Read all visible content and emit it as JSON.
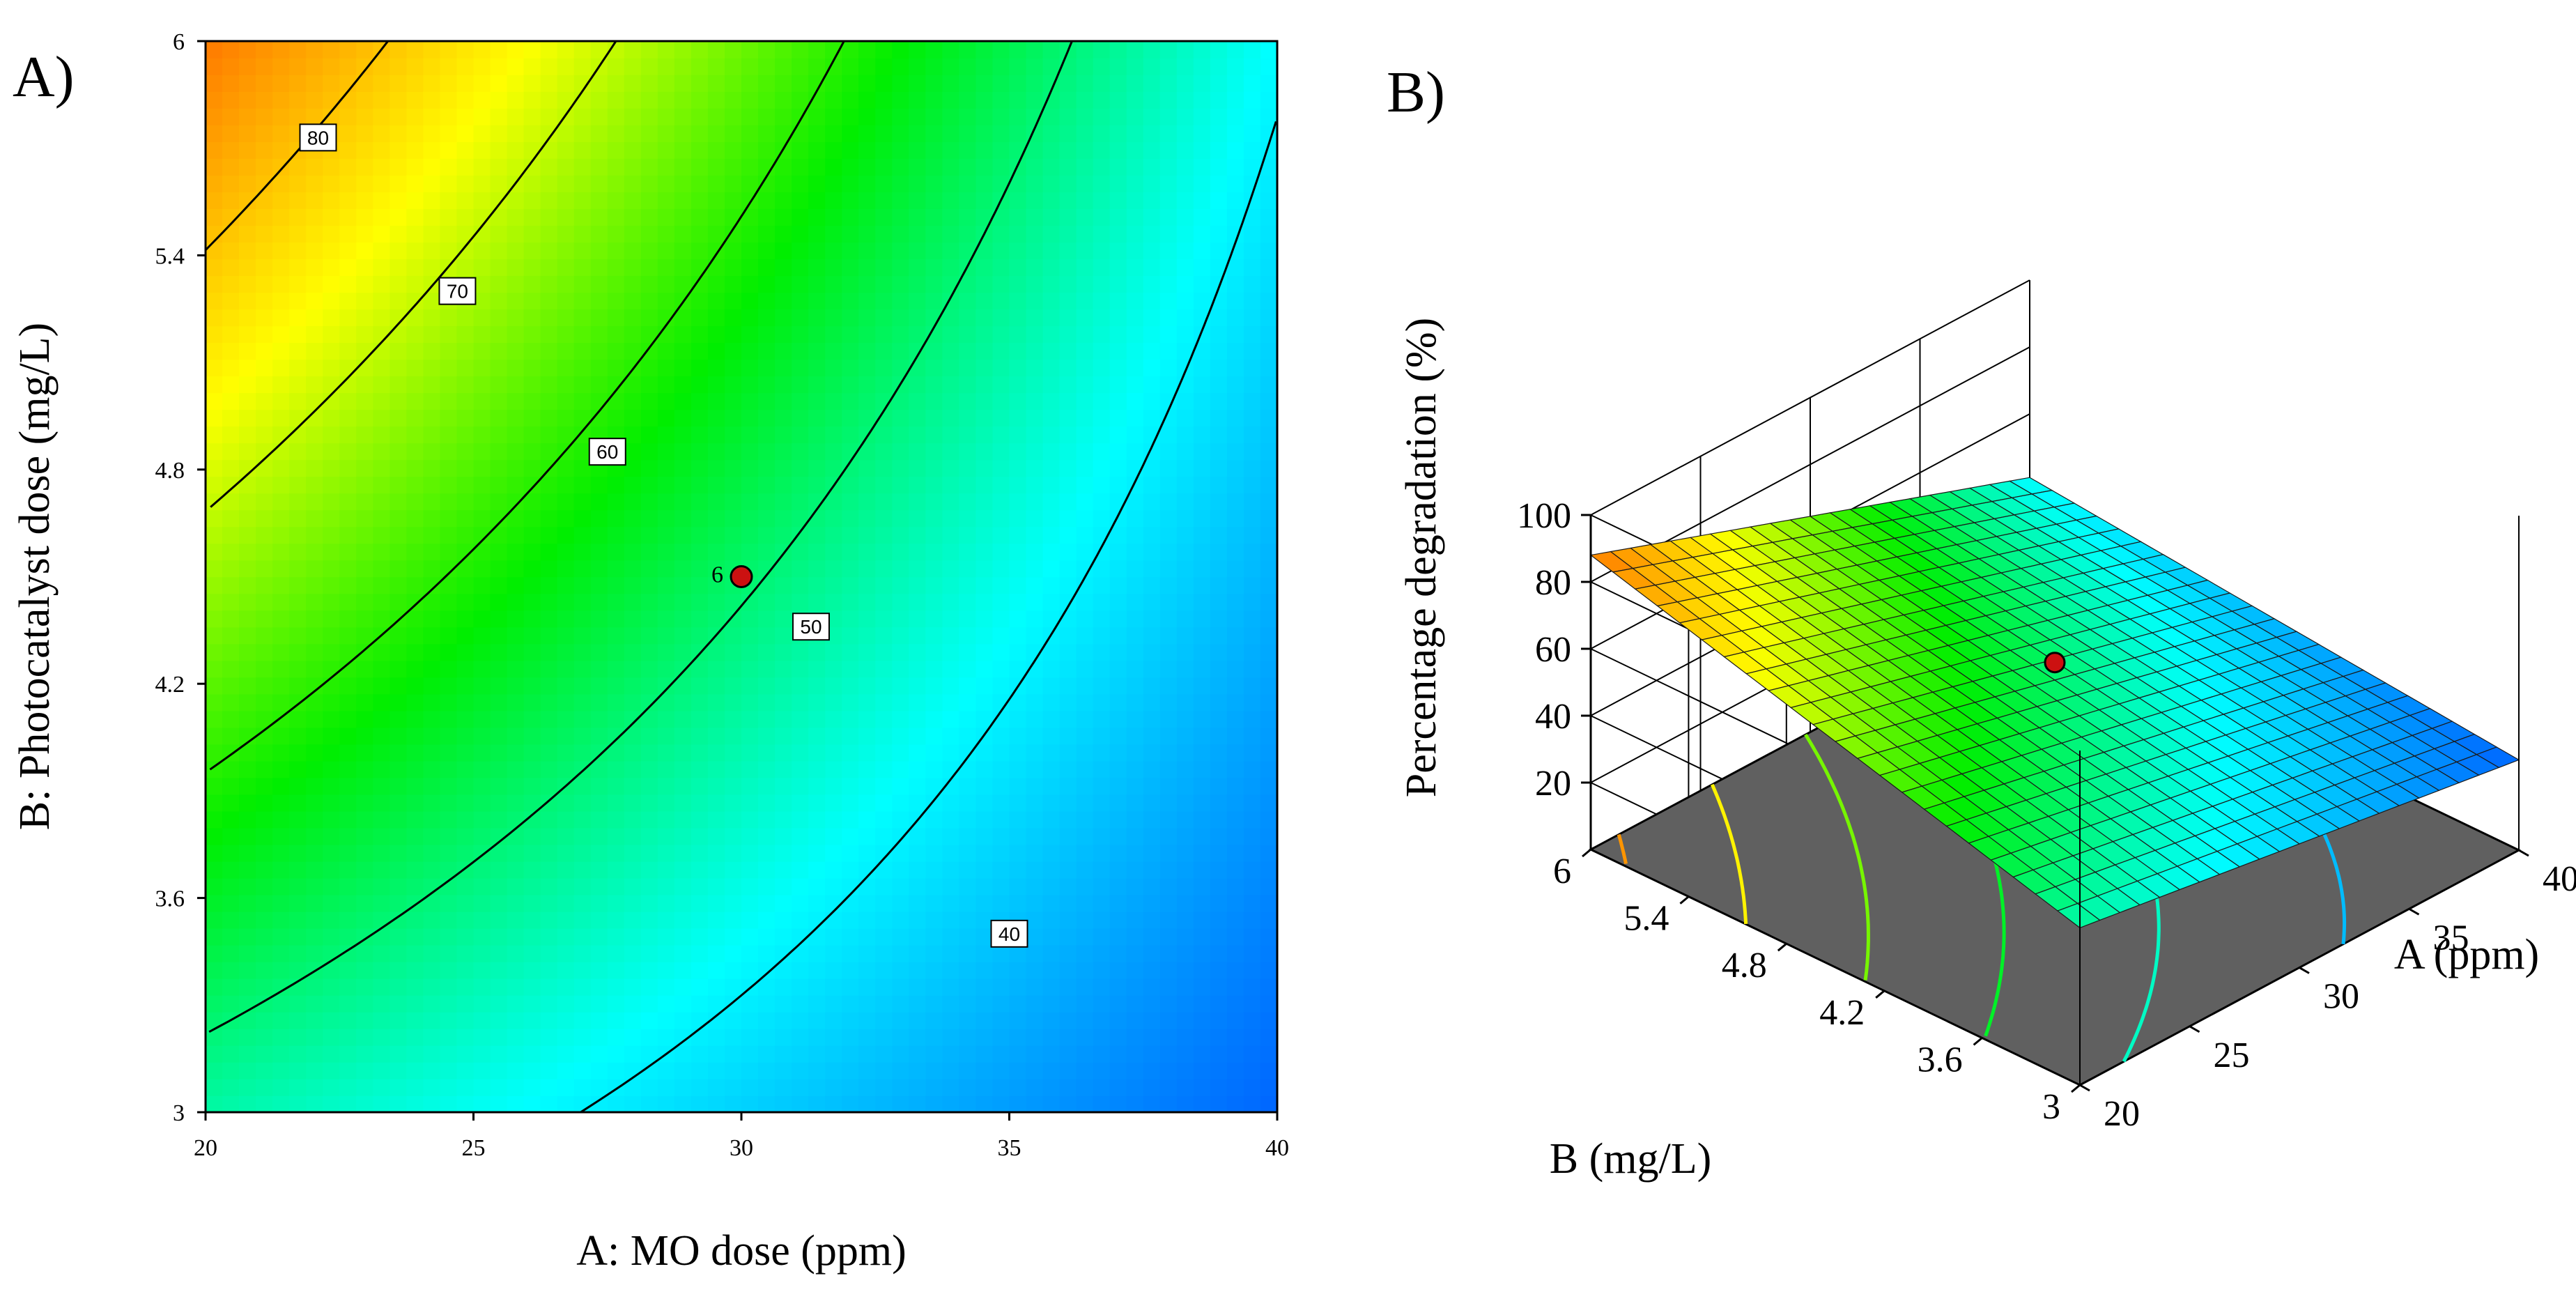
{
  "figure": {
    "panel_a_label": "A)",
    "panel_b_label": "B)"
  },
  "chart_data": [
    {
      "type": "heatmap",
      "subtype": "contour",
      "title": "",
      "xlabel": "A: MO dose (ppm)",
      "ylabel": "B: Photocatalyst dose (mg/L)",
      "xlim": [
        20,
        40
      ],
      "ylim": [
        3,
        6
      ],
      "x_ticks": [
        "20",
        "25",
        "30",
        "35",
        "40"
      ],
      "y_ticks": [
        "3",
        "3.6",
        "4.2",
        "4.8",
        "5.4",
        "6"
      ],
      "grid": false,
      "corner_values": {
        "x20_y3": 47,
        "x40_y3": 27,
        "x20_y6": 88,
        "x40_y6": 41
      },
      "contour_levels": [
        40,
        50,
        60,
        70,
        80
      ],
      "contour_labels": [
        {
          "level": 80,
          "text": "80",
          "x": 22.1,
          "y": 5.73
        },
        {
          "level": 70,
          "text": "70",
          "x": 24.7,
          "y": 5.3
        },
        {
          "level": 60,
          "text": "60",
          "x": 27.5,
          "y": 4.85
        },
        {
          "level": 50,
          "text": "50",
          "x": 31.3,
          "y": 4.36
        },
        {
          "level": 40,
          "text": "40",
          "x": 35.0,
          "y": 3.5
        }
      ],
      "design_point": {
        "x": 30,
        "y": 4.5,
        "label": "6",
        "color": "#cc1111"
      },
      "colormap": [
        "#0050ff",
        "#00ffff",
        "#00ee00",
        "#ffff00",
        "#ff6600"
      ]
    },
    {
      "type": "surface",
      "title": "",
      "zlabel": "Percentage degradation (%)",
      "xlabel": "A (ppm)",
      "ylabel": "B (mg/L)",
      "xlim": [
        20,
        40
      ],
      "ylim": [
        3,
        6
      ],
      "zlim": [
        20,
        100
      ],
      "x_ticks": [
        "20",
        "25",
        "30",
        "35",
        "40"
      ],
      "y_ticks": [
        "3",
        "3.6",
        "4.2",
        "4.8",
        "5.4",
        "6"
      ],
      "z_ticks": [
        "20",
        "40",
        "60",
        "80",
        "100"
      ],
      "corner_values": {
        "x20_y3": 47,
        "x40_y3": 27,
        "x20_y6": 88,
        "x40_y6": 41
      },
      "floor_color": "#606060",
      "design_point": {
        "x": 30,
        "y": 4.5,
        "z": 56,
        "color": "#cc1111"
      }
    }
  ]
}
